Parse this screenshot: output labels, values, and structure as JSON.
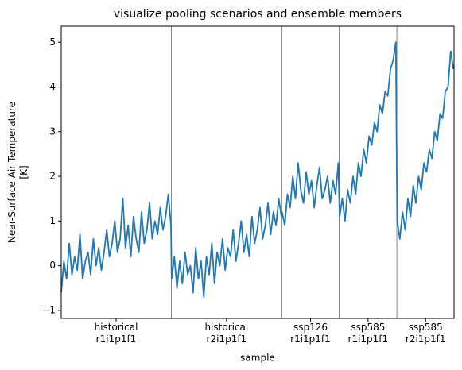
{
  "chart_data": {
    "type": "line",
    "title": "visualize pooling scenarios and ensemble members",
    "xlabel": "sample",
    "ylabel": "Near-Surface Air Temperature\n[K]",
    "x": [
      0,
      4,
      8,
      12,
      16,
      20,
      24,
      28,
      32,
      36,
      40,
      44,
      48,
      52,
      56,
      60,
      64,
      68,
      72,
      76,
      80,
      84,
      88,
      92,
      96,
      100,
      104,
      108,
      112,
      116,
      120,
      124,
      128,
      132,
      136,
      140,
      144,
      148,
      152,
      156,
      160,
      164,
      165,
      169,
      173,
      177,
      181,
      185,
      189,
      193,
      197,
      201,
      205,
      209,
      213,
      217,
      221,
      225,
      229,
      233,
      237,
      241,
      245,
      249,
      253,
      257,
      261,
      265,
      269,
      273,
      277,
      281,
      285,
      289,
      293,
      297,
      301,
      305,
      309,
      313,
      317,
      321,
      325,
      329,
      330,
      334,
      338,
      342,
      346,
      350,
      354,
      358,
      362,
      366,
      370,
      374,
      378,
      382,
      386,
      390,
      394,
      398,
      402,
      406,
      410,
      414,
      416,
      420,
      424,
      428,
      432,
      436,
      440,
      444,
      448,
      452,
      456,
      460,
      464,
      468,
      472,
      476,
      480,
      484,
      488,
      492,
      496,
      500,
      502,
      506,
      510,
      514,
      518,
      522,
      526,
      530,
      534,
      538,
      542,
      546,
      550,
      554,
      558,
      562,
      566,
      570,
      574,
      578,
      582,
      586
    ],
    "series": [
      {
        "color": "#1f77b4",
        "values": [
          -0.6,
          0.1,
          -0.3,
          0.5,
          -0.2,
          0.2,
          -0.1,
          0.7,
          -0.3,
          0.1,
          0.3,
          -0.2,
          0.6,
          0.0,
          0.4,
          -0.1,
          0.3,
          0.8,
          0.2,
          0.5,
          1.0,
          0.3,
          0.6,
          1.5,
          0.4,
          0.9,
          0.2,
          1.1,
          0.6,
          0.3,
          1.2,
          0.5,
          0.8,
          1.4,
          0.6,
          1.0,
          0.7,
          1.3,
          0.8,
          1.1,
          1.6,
          0.9,
          -0.3,
          0.2,
          -0.5,
          0.1,
          -0.4,
          0.3,
          -0.2,
          0.0,
          -0.6,
          0.4,
          -0.3,
          0.1,
          -0.7,
          0.2,
          -0.2,
          0.5,
          -0.4,
          0.3,
          0.0,
          0.6,
          -0.1,
          0.4,
          0.2,
          0.8,
          0.1,
          0.5,
          1.0,
          0.3,
          0.7,
          0.2,
          1.1,
          0.5,
          0.8,
          1.3,
          0.6,
          0.9,
          1.4,
          0.7,
          1.2,
          0.9,
          1.5,
          1.1,
          1.2,
          0.9,
          1.6,
          1.3,
          2.0,
          1.5,
          2.3,
          1.7,
          1.4,
          2.1,
          1.6,
          1.9,
          1.3,
          1.8,
          2.2,
          1.5,
          1.7,
          2.0,
          1.4,
          1.9,
          1.6,
          2.3,
          1.1,
          1.5,
          1.0,
          1.7,
          1.4,
          2.0,
          1.6,
          2.3,
          2.0,
          2.6,
          2.3,
          2.9,
          2.7,
          3.2,
          3.0,
          3.6,
          3.4,
          3.9,
          3.8,
          4.4,
          4.6,
          5.0,
          1.0,
          0.6,
          1.2,
          0.8,
          1.5,
          1.1,
          1.8,
          1.4,
          2.0,
          1.7,
          2.3,
          2.1,
          2.6,
          2.4,
          3.0,
          2.8,
          3.4,
          3.3,
          3.9,
          4.0,
          4.8,
          4.4
        ]
      }
    ],
    "vlines": [
      164.5,
      329.5,
      415.5,
      501.5
    ],
    "xlim": [
      0,
      587
    ],
    "xticks": [
      {
        "value": 82,
        "label": "historical\nr1i1p1f1"
      },
      {
        "value": 247,
        "label": "historical\nr2i1p1f1"
      },
      {
        "value": 372.5,
        "label": "ssp126\nr1i1p1f1"
      },
      {
        "value": 458.5,
        "label": "ssp585\nr1i1p1f1"
      },
      {
        "value": 544.5,
        "label": "ssp585\nr2i1p1f1"
      }
    ],
    "ylim": [
      -1.18,
      5.36
    ],
    "yticks": [
      {
        "value": -1,
        "label": "−1"
      },
      0,
      1,
      2,
      3,
      4,
      5
    ]
  }
}
